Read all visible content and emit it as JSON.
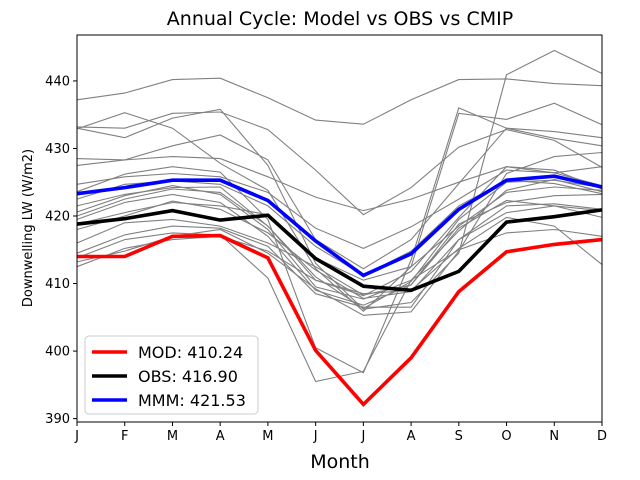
{
  "chart_data": {
    "type": "line",
    "title": "Annual Cycle: Model vs OBS vs CMIP",
    "xlabel": "Month",
    "ylabel": "Downwelling LW (W/m2)",
    "categories": [
      "J",
      "F",
      "M",
      "A",
      "M",
      "J",
      "J",
      "A",
      "S",
      "O",
      "N",
      "D"
    ],
    "ylim": [
      389.5,
      446.8
    ],
    "yticks": [
      390,
      400,
      410,
      420,
      430,
      440
    ],
    "legend_position": "lower-left",
    "colors": {
      "cmip": "#808080",
      "MOD": "#ff0000",
      "OBS": "#000000",
      "MMM": "#0000ff",
      "axes": "#000000"
    },
    "cmip_series": [
      [
        437.2,
        438.2,
        440.2,
        440.4,
        437.5,
        434.2,
        433.6,
        437.2,
        440.2,
        440.3,
        439.6,
        439.3
      ],
      [
        433.2,
        433.0,
        435.2,
        435.4,
        432.8,
        426.8,
        420.2,
        424.2,
        430.2,
        432.8,
        431.2,
        427.2
      ],
      [
        433.0,
        431.6,
        434.5,
        435.8,
        427.5,
        413.0,
        406.2,
        407.2,
        414.5,
        440.9,
        444.5,
        441.1
      ],
      [
        432.9,
        435.3,
        433.0,
        427.8,
        423.8,
        412.2,
        405.9,
        412.5,
        435.2,
        434.3,
        436.7,
        433.5
      ],
      [
        428.5,
        428.3,
        428.8,
        428.5,
        425.8,
        422.8,
        420.8,
        422.5,
        425.0,
        427.3,
        426.4,
        427.3
      ],
      [
        427.5,
        428.3,
        430.4,
        432.0,
        428.3,
        416.5,
        412.2,
        416.5,
        424.8,
        433.0,
        431.5,
        430.4
      ],
      [
        424.7,
        425.8,
        426.3,
        425.8,
        423.5,
        418.2,
        415.2,
        418.4,
        422.5,
        426.8,
        426.4,
        424.5
      ],
      [
        423.6,
        426.2,
        427.3,
        426.5,
        419.5,
        400.5,
        396.8,
        413.5,
        436.0,
        433.0,
        432.5,
        431.6
      ],
      [
        422.5,
        424.7,
        425.2,
        424.7,
        421.5,
        415.5,
        411.2,
        414.8,
        421.5,
        425.3,
        424.8,
        423.3
      ],
      [
        421.5,
        423.2,
        424.2,
        424.3,
        418.5,
        411.0,
        406.3,
        410.3,
        419.5,
        425.0,
        425.3,
        424.2
      ],
      [
        420.6,
        423.0,
        424.5,
        423.2,
        418.0,
        409.5,
        407.7,
        410.5,
        417.8,
        423.8,
        425.4,
        423.6
      ],
      [
        420.0,
        422.5,
        424.0,
        423.5,
        418.5,
        410.5,
        408.2,
        411.8,
        419.8,
        427.3,
        426.8,
        424.0
      ],
      [
        419.5,
        422.0,
        423.2,
        422.0,
        417.0,
        409.0,
        406.8,
        409.8,
        418.2,
        422.3,
        421.5,
        419.8
      ],
      [
        418.8,
        420.5,
        422.0,
        421.5,
        420.2,
        413.8,
        410.5,
        412.5,
        418.5,
        423.5,
        424.3,
        423.8
      ],
      [
        418.0,
        420.0,
        422.2,
        421.0,
        417.5,
        412.0,
        407.8,
        408.8,
        416.5,
        421.5,
        421.8,
        421.0
      ],
      [
        416.0,
        419.0,
        419.5,
        418.5,
        416.0,
        412.5,
        408.3,
        409.8,
        418.8,
        422.0,
        423.0,
        423.2
      ],
      [
        414.5,
        417.2,
        418.5,
        418.2,
        415.5,
        408.5,
        406.5,
        406.5,
        416.5,
        420.5,
        421.5,
        420.8
      ],
      [
        413.8,
        416.5,
        417.5,
        417.2,
        410.8,
        395.5,
        397.0,
        410.5,
        415.0,
        417.5,
        418.0,
        417.0
      ],
      [
        413.2,
        414.8,
        417.0,
        418.0,
        414.5,
        409.2,
        405.3,
        405.8,
        414.8,
        426.3,
        428.8,
        429.4
      ],
      [
        412.5,
        415.2,
        416.5,
        417.0,
        414.8,
        410.5,
        408.5,
        409.0,
        415.2,
        419.8,
        418.5,
        412.8
      ]
    ],
    "series": [
      {
        "name": "OBS",
        "legend_label": "OBS: 416.90",
        "values": [
          418.8,
          419.6,
          420.8,
          419.4,
          420.1,
          413.7,
          409.6,
          409.0,
          411.8,
          419.1,
          419.9,
          420.9
        ]
      },
      {
        "name": "MMM",
        "legend_label": "MMM: 421.53",
        "values": [
          423.3,
          424.2,
          425.3,
          425.3,
          422.3,
          416.3,
          411.2,
          414.4,
          421.0,
          425.3,
          425.9,
          424.3
        ]
      },
      {
        "name": "MOD",
        "legend_label": "MOD: 410.24",
        "values": [
          414.0,
          414.0,
          417.0,
          417.1,
          413.8,
          400.1,
          392.1,
          399.0,
          408.8,
          414.7,
          415.8,
          416.5
        ]
      }
    ]
  }
}
